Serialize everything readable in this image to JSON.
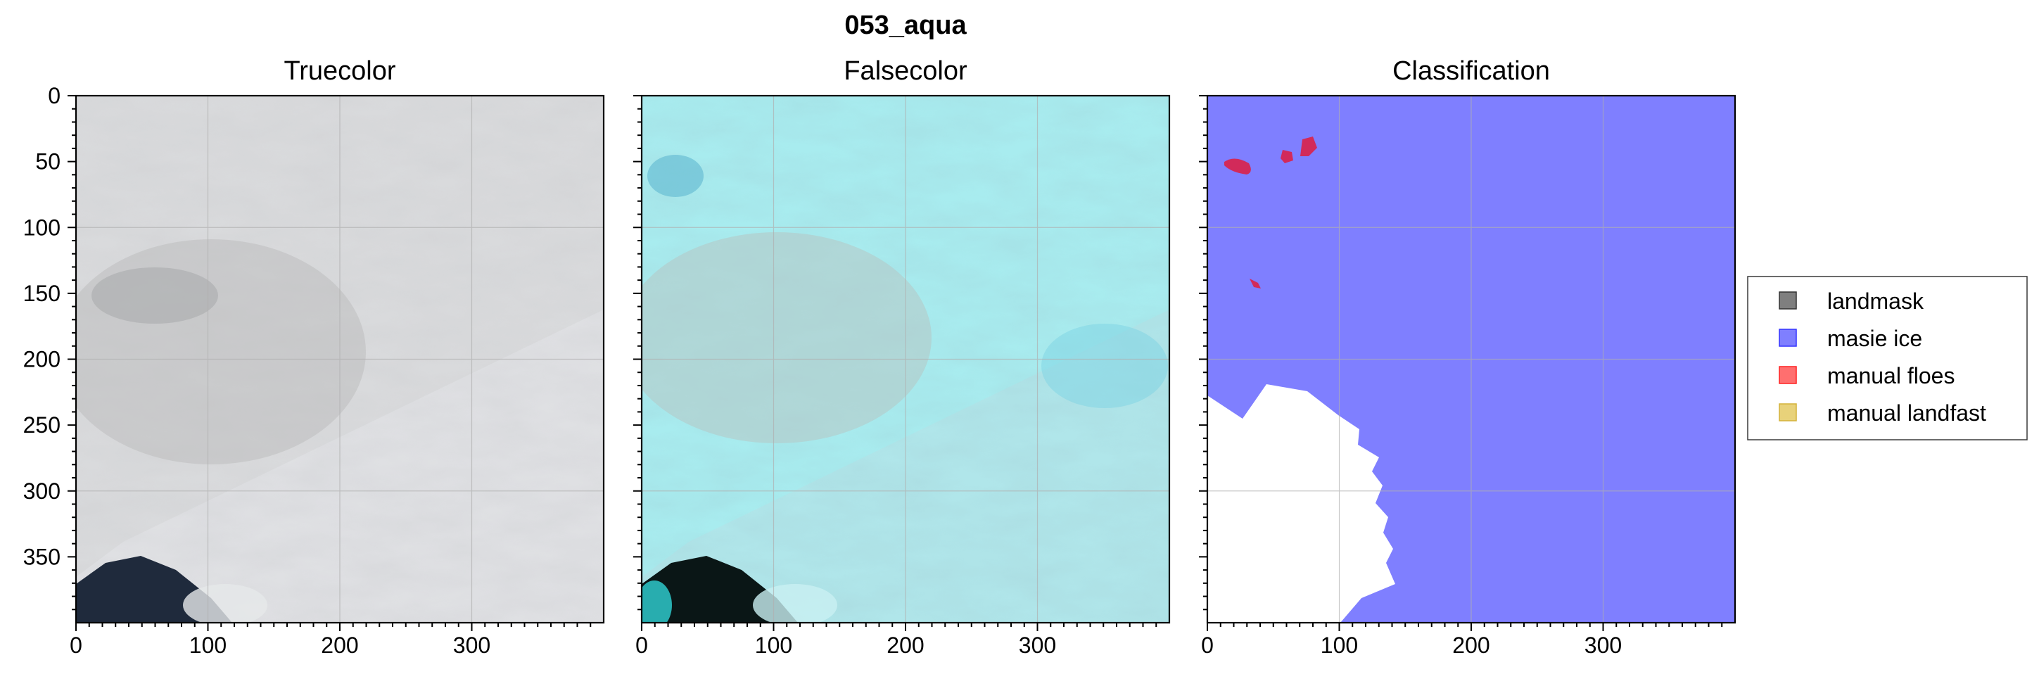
{
  "figure": {
    "suptitle": "053_aqua",
    "panels": [
      {
        "title": "Truecolor"
      },
      {
        "title": "Falsecolor"
      },
      {
        "title": "Classification"
      }
    ],
    "y_ticks": [
      "0",
      "50",
      "100",
      "150",
      "200",
      "250",
      "300",
      "350"
    ],
    "x_ticks": [
      "0",
      "100",
      "200",
      "300"
    ],
    "axis_range": {
      "x": [
        0,
        400
      ],
      "y": [
        0,
        400
      ]
    },
    "grid": true,
    "legend_placement": "right",
    "colors": {
      "truecolor_cloud": "#d9dadc",
      "truecolor_dark_water": "#1f2a3c",
      "falsecolor_cyan": "#a8ecef",
      "falsecolor_dark": "#0a1616",
      "masie_ice": "#7f7fff",
      "manual_floes": "#ff6f6f",
      "landmask": "#7f7f7f",
      "manual_landfast": "#e8d27a"
    }
  },
  "legend": {
    "items": [
      {
        "label": "landmask",
        "color": "#7f7f7f"
      },
      {
        "label": "masie ice",
        "color": "#7f7fff"
      },
      {
        "label": "manual floes",
        "color": "#ff6f6f"
      },
      {
        "label": "manual landfast",
        "color": "#e8d27a"
      }
    ]
  }
}
